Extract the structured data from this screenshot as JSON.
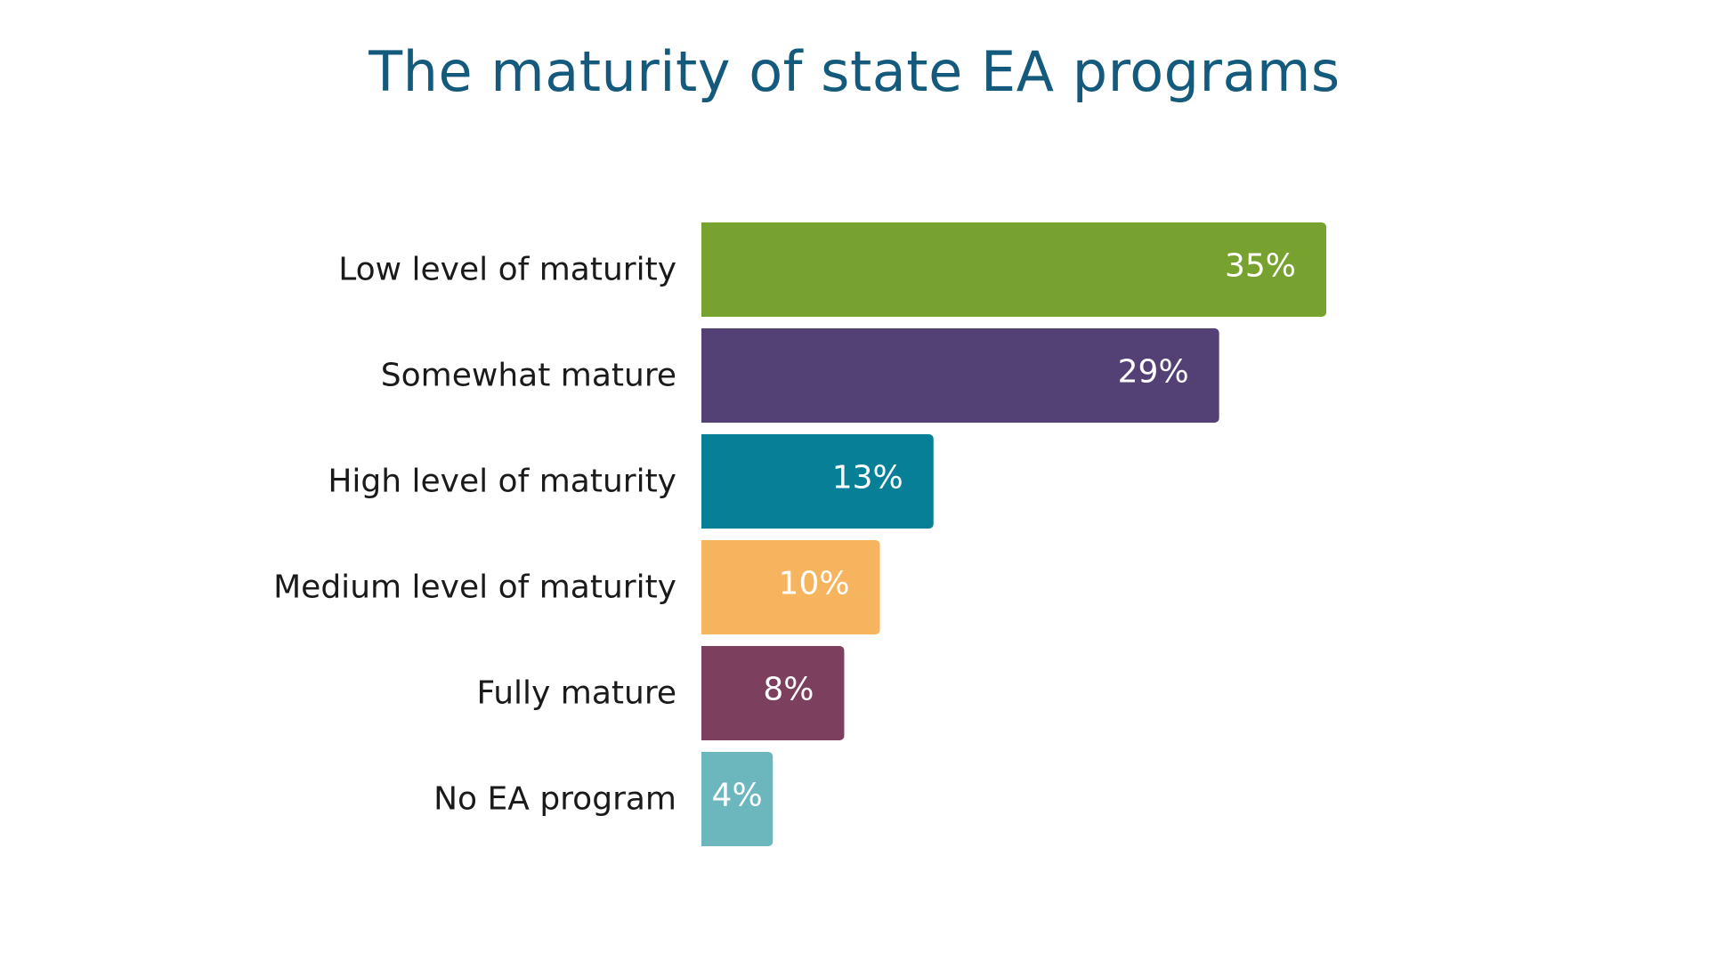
{
  "chart_data": {
    "type": "bar",
    "orientation": "horizontal",
    "title": "The maturity of state EA programs",
    "categories": [
      "Low level of maturity",
      "Somewhat mature",
      "High level of maturity",
      "Medium level of maturity",
      "Fully mature",
      "No EA program"
    ],
    "values": [
      35,
      29,
      13,
      10,
      8,
      4
    ],
    "value_labels": [
      "35%",
      "29%",
      "13%",
      "10%",
      "8%",
      "4%"
    ],
    "unit": "%",
    "colors": [
      "#78a22f",
      "#534075",
      "#067f97",
      "#f6b45e",
      "#7c3f5e",
      "#6cb6be"
    ],
    "xlim": [
      0,
      35
    ],
    "grid": false,
    "legend": "none"
  },
  "theme": {
    "title_color": "#145a7d",
    "label_color": "#1a1a1a",
    "value_label_color": "#ffffff"
  }
}
